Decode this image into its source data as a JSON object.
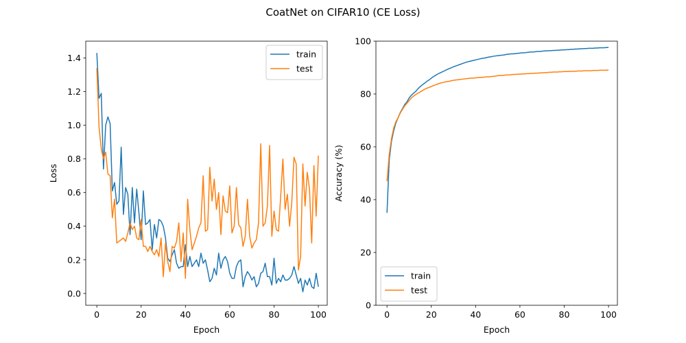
{
  "figure": {
    "title": "CoatNet on CIFAR10 (CE Loss)"
  },
  "colors": {
    "train": "#1f77b4",
    "test": "#ff7f0e"
  },
  "chart_data": [
    {
      "type": "line",
      "xlabel": "Epoch",
      "ylabel": "Loss",
      "xlim": [
        -5,
        104
      ],
      "ylim": [
        -0.07,
        1.5
      ],
      "xticks": [
        0,
        20,
        40,
        60,
        80,
        100
      ],
      "yticks": [
        0.0,
        0.2,
        0.4,
        0.6,
        0.8,
        1.0,
        1.2,
        1.4
      ],
      "ytick_decimals": 1,
      "legend": "top-right",
      "grid": false,
      "series": [
        {
          "name": "train",
          "values": [
            1.43,
            1.16,
            1.19,
            0.74,
            1.0,
            1.05,
            1.01,
            0.61,
            0.66,
            0.53,
            0.55,
            0.87,
            0.47,
            0.63,
            0.59,
            0.35,
            0.63,
            0.42,
            0.62,
            0.48,
            0.32,
            0.61,
            0.41,
            0.42,
            0.44,
            0.26,
            0.41,
            0.33,
            0.44,
            0.43,
            0.4,
            0.33,
            0.21,
            0.19,
            0.23,
            0.26,
            0.18,
            0.15,
            0.16,
            0.16,
            0.29,
            0.16,
            0.22,
            0.16,
            0.18,
            0.2,
            0.16,
            0.24,
            0.18,
            0.2,
            0.14,
            0.07,
            0.09,
            0.15,
            0.11,
            0.24,
            0.15,
            0.2,
            0.22,
            0.19,
            0.12,
            0.09,
            0.09,
            0.16,
            0.19,
            0.2,
            0.04,
            0.1,
            0.13,
            0.11,
            0.08,
            0.1,
            0.04,
            0.06,
            0.12,
            0.13,
            0.18,
            0.1,
            0.1,
            0.05,
            0.21,
            0.06,
            0.09,
            0.07,
            0.11,
            0.08,
            0.08,
            0.09,
            0.11,
            0.16,
            0.11,
            0.06,
            0.09,
            0.01,
            0.08,
            0.05,
            0.09,
            0.04,
            0.03,
            0.12,
            0.04
          ]
        },
        {
          "name": "test",
          "values": [
            1.34,
            0.99,
            0.86,
            0.8,
            0.84,
            0.71,
            0.7,
            0.45,
            0.56,
            0.3,
            0.31,
            0.32,
            0.33,
            0.31,
            0.36,
            0.42,
            0.38,
            0.4,
            0.33,
            0.32,
            0.44,
            0.28,
            0.28,
            0.25,
            0.28,
            0.25,
            0.23,
            0.26,
            0.22,
            0.33,
            0.1,
            0.3,
            0.19,
            0.13,
            0.28,
            0.27,
            0.31,
            0.42,
            0.19,
            0.36,
            0.09,
            0.56,
            0.38,
            0.26,
            0.3,
            0.34,
            0.39,
            0.42,
            0.7,
            0.37,
            0.38,
            0.75,
            0.55,
            0.68,
            0.5,
            0.6,
            0.35,
            0.58,
            0.49,
            0.48,
            0.64,
            0.36,
            0.4,
            0.63,
            0.41,
            0.39,
            0.28,
            0.34,
            0.56,
            0.34,
            0.27,
            0.3,
            0.32,
            0.42,
            0.89,
            0.4,
            0.42,
            0.52,
            0.88,
            0.34,
            0.49,
            0.38,
            0.37,
            0.58,
            0.8,
            0.5,
            0.59,
            0.4,
            0.54,
            0.81,
            0.77,
            0.14,
            0.22,
            0.77,
            0.52,
            0.72,
            0.62,
            0.3,
            0.76,
            0.46,
            0.82
          ]
        }
      ]
    },
    {
      "type": "line",
      "xlabel": "Epoch",
      "ylabel": "Accuracy (%)",
      "xlim": [
        -5,
        104
      ],
      "ylim": [
        0,
        100
      ],
      "xticks": [
        0,
        20,
        40,
        60,
        80,
        100
      ],
      "yticks": [
        0,
        20,
        40,
        60,
        80,
        100
      ],
      "ytick_decimals": 0,
      "legend": "bottom-left",
      "grid": false,
      "series": [
        {
          "name": "train",
          "values": [
            35.0,
            55.0,
            62.0,
            66.0,
            69.0,
            71.0,
            73.0,
            74.5,
            76.0,
            77.0,
            78.5,
            79.5,
            80.3,
            81.0,
            82.0,
            82.8,
            83.5,
            84.1,
            84.8,
            85.3,
            86.0,
            86.6,
            87.1,
            87.6,
            88.0,
            88.4,
            88.8,
            89.2,
            89.6,
            89.9,
            90.3,
            90.6,
            90.9,
            91.2,
            91.5,
            91.8,
            92.1,
            92.3,
            92.5,
            92.7,
            92.9,
            93.1,
            93.3,
            93.5,
            93.6,
            93.8,
            94.0,
            94.1,
            94.3,
            94.4,
            94.5,
            94.6,
            94.7,
            94.8,
            95.0,
            95.1,
            95.2,
            95.2,
            95.3,
            95.4,
            95.5,
            95.6,
            95.6,
            95.7,
            95.8,
            95.9,
            95.9,
            96.0,
            96.1,
            96.1,
            96.2,
            96.3,
            96.3,
            96.4,
            96.4,
            96.5,
            96.5,
            96.6,
            96.6,
            96.7,
            96.7,
            96.8,
            96.8,
            96.9,
            96.9,
            97.0,
            97.0,
            97.1,
            97.1,
            97.2,
            97.2,
            97.3,
            97.3,
            97.3,
            97.4,
            97.4,
            97.5,
            97.5,
            97.5,
            97.6,
            97.6
          ]
        },
        {
          "name": "test",
          "values": [
            47.0,
            57.0,
            63.0,
            67.0,
            69.5,
            71.0,
            72.8,
            74.2,
            75.5,
            76.5,
            77.5,
            78.5,
            79.2,
            79.8,
            80.3,
            80.8,
            81.3,
            81.8,
            82.2,
            82.5,
            82.8,
            83.2,
            83.5,
            83.8,
            84.1,
            84.3,
            84.5,
            84.7,
            84.8,
            85.0,
            85.2,
            85.3,
            85.4,
            85.5,
            85.6,
            85.7,
            85.8,
            85.9,
            86.0,
            86.0,
            86.1,
            86.2,
            86.3,
            86.3,
            86.4,
            86.5,
            86.5,
            86.6,
            86.7,
            86.8,
            86.9,
            87.0,
            87.0,
            87.1,
            87.2,
            87.2,
            87.3,
            87.4,
            87.4,
            87.5,
            87.5,
            87.6,
            87.6,
            87.7,
            87.7,
            87.8,
            87.8,
            87.9,
            87.9,
            88.0,
            88.0,
            88.1,
            88.1,
            88.2,
            88.2,
            88.3,
            88.3,
            88.3,
            88.4,
            88.4,
            88.5,
            88.5,
            88.5,
            88.6,
            88.6,
            88.6,
            88.7,
            88.7,
            88.7,
            88.8,
            88.8,
            88.8,
            88.8,
            88.9,
            88.9,
            88.9,
            89.0,
            89.0,
            89.0,
            89.0,
            89.1
          ]
        }
      ]
    }
  ]
}
